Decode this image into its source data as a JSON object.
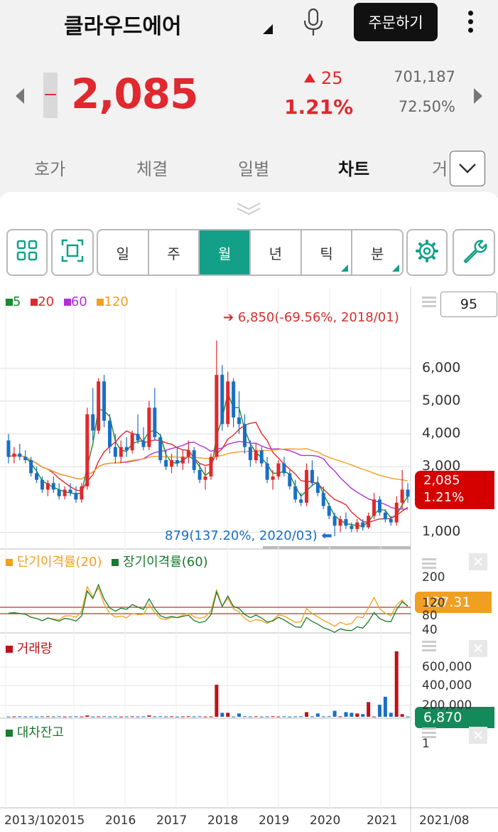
{
  "header": {
    "stock_name": "클라우드에어",
    "order_button": "주문하기",
    "price": "2,085",
    "change": "25",
    "change_pct": "1.21%",
    "volume": "701,187",
    "turnover_ratio": "72.50%"
  },
  "tabs": [
    "호가",
    "체결",
    "일별",
    "차트",
    "거"
  ],
  "active_tab": "차트",
  "period_buttons": [
    "일",
    "주",
    "월",
    "년",
    "틱",
    "분"
  ],
  "active_period": "월",
  "count_box": "95",
  "colors": {
    "accent": "#12a088",
    "up": "#e0282e",
    "down": "#1a6fc4"
  },
  "chart_data": [
    {
      "type": "candlestick",
      "legend": [
        {
          "name": "5",
          "color": "#1a8a2e"
        },
        {
          "name": "20",
          "color": "#e0282e"
        },
        {
          "name": "60",
          "color": "#b030d8"
        },
        {
          "name": "120",
          "color": "#f0a020"
        }
      ],
      "y_ticks": [
        "6,000",
        "5,000",
        "4,000",
        "3,000",
        "1,000"
      ],
      "ylim": [
        750,
        7300
      ],
      "x_ticks": [
        "2013/10",
        "2015",
        "2016",
        "2017",
        "2018",
        "2019",
        "2020",
        "2021",
        "2021/08"
      ],
      "high_annotation": "6,850(-69.56%, 2018/01)",
      "low_annotation": "879(137.20%, 2020/03)",
      "last_price_label": "2,085",
      "last_pct_label": "1.21%",
      "ohlc": [
        [
          3800,
          4000,
          3100,
          3300
        ],
        [
          3300,
          3600,
          3100,
          3400
        ],
        [
          3400,
          3700,
          3200,
          3300
        ],
        [
          3300,
          3500,
          3100,
          3200
        ],
        [
          3200,
          3300,
          2700,
          2800
        ],
        [
          2800,
          3000,
          2500,
          2600
        ],
        [
          2600,
          2700,
          2200,
          2300
        ],
        [
          2300,
          2600,
          2100,
          2500
        ],
        [
          2500,
          2700,
          2200,
          2300
        ],
        [
          2300,
          2500,
          2000,
          2100
        ],
        [
          2100,
          2400,
          2000,
          2300
        ],
        [
          2300,
          2500,
          2100,
          2200
        ],
        [
          2200,
          2400,
          1900,
          2000
        ],
        [
          2000,
          2500,
          1900,
          2400
        ],
        [
          2400,
          4800,
          2300,
          4600
        ],
        [
          4600,
          5400,
          3800,
          4100
        ],
        [
          4100,
          5700,
          4000,
          5600
        ],
        [
          5600,
          5800,
          4200,
          4400
        ],
        [
          4400,
          4600,
          3400,
          3600
        ],
        [
          3600,
          4000,
          3100,
          3300
        ],
        [
          3300,
          3800,
          3100,
          3600
        ],
        [
          3600,
          3900,
          3300,
          3500
        ],
        [
          3500,
          4100,
          3400,
          4000
        ],
        [
          4000,
          4600,
          3700,
          3800
        ],
        [
          3800,
          4200,
          3500,
          3600
        ],
        [
          3600,
          5000,
          3500,
          4800
        ],
        [
          4800,
          5400,
          3800,
          3900
        ],
        [
          3900,
          4000,
          3100,
          3200
        ],
        [
          3200,
          3500,
          2900,
          3000
        ],
        [
          3000,
          3400,
          2800,
          3200
        ],
        [
          3200,
          3600,
          3000,
          3100
        ],
        [
          3100,
          3500,
          2900,
          3300
        ],
        [
          3300,
          3800,
          3100,
          3500
        ],
        [
          3500,
          3600,
          2800,
          2900
        ],
        [
          2900,
          3100,
          2500,
          2600
        ],
        [
          2600,
          3000,
          2300,
          2700
        ],
        [
          2700,
          3400,
          2600,
          3300
        ],
        [
          3300,
          6850,
          3200,
          5800
        ],
        [
          5800,
          6100,
          4100,
          4300
        ],
        [
          4300,
          5900,
          4200,
          5600
        ],
        [
          5600,
          5700,
          4200,
          4500
        ],
        [
          4500,
          5300,
          4000,
          4300
        ],
        [
          4300,
          4600,
          3400,
          3600
        ],
        [
          3600,
          3800,
          3000,
          3200
        ],
        [
          3200,
          3700,
          3100,
          3500
        ],
        [
          3500,
          3600,
          3000,
          3100
        ],
        [
          3100,
          3300,
          2500,
          2600
        ],
        [
          2600,
          2900,
          2300,
          2700
        ],
        [
          2700,
          3200,
          2600,
          3100
        ],
        [
          3100,
          3300,
          2700,
          2800
        ],
        [
          2800,
          2900,
          2300,
          2400
        ],
        [
          2400,
          2600,
          1900,
          2000
        ],
        [
          2000,
          2200,
          1800,
          1900
        ],
        [
          1900,
          3100,
          1800,
          2900
        ],
        [
          2900,
          3200,
          2400,
          2500
        ],
        [
          2500,
          2700,
          2100,
          2200
        ],
        [
          2200,
          2400,
          1700,
          1800
        ],
        [
          1800,
          1900,
          1400,
          1500
        ],
        [
          1500,
          1600,
          879,
          1200
        ],
        [
          1200,
          1500,
          1000,
          1400
        ],
        [
          1400,
          1600,
          1100,
          1200
        ],
        [
          1200,
          1300,
          1000,
          1100
        ],
        [
          1100,
          1400,
          1000,
          1300
        ],
        [
          1300,
          1400,
          1050,
          1150
        ],
        [
          1150,
          1600,
          1100,
          1500
        ],
        [
          1500,
          2200,
          1400,
          2000
        ],
        [
          2000,
          2100,
          1500,
          1600
        ],
        [
          1600,
          1700,
          1300,
          1400
        ],
        [
          1400,
          1500,
          1200,
          1300
        ],
        [
          1300,
          2100,
          1200,
          1900
        ],
        [
          1900,
          2900,
          1700,
          2300
        ],
        [
          2300,
          2500,
          1900,
          2085
        ]
      ]
    },
    {
      "type": "line",
      "title": "단기이격률(20)",
      "series": [
        {
          "name": "단기이격률(20)",
          "color": "#f0a020"
        },
        {
          "name": "장기이격률(60)",
          "color": "#1a7a2e"
        }
      ],
      "y_ticks": [
        "200",
        "120",
        "80",
        "40"
      ],
      "last_value": "127.31"
    },
    {
      "type": "bar",
      "title": "거래량",
      "y_ticks": [
        "600,000",
        "400,000",
        "200,000"
      ],
      "last_value": "6,870"
    },
    {
      "type": "line",
      "title": "대차잔고",
      "y_ticks": [
        "1"
      ]
    }
  ]
}
